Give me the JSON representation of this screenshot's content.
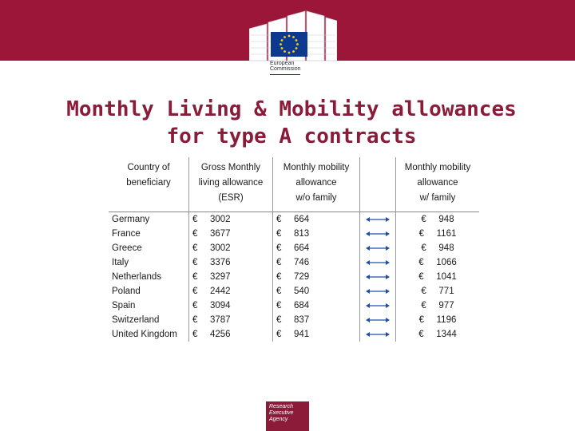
{
  "header": {
    "org_line1": "European",
    "org_line2": "Commission"
  },
  "title": {
    "line1": "Monthly Living & Mobility allowances",
    "line2": "for type A contracts"
  },
  "table": {
    "headers": {
      "country": [
        "Country of",
        "beneficiary"
      ],
      "gross": [
        "Gross Monthly",
        "living allowance",
        "(ESR)"
      ],
      "mobility": [
        "Monthly mobility",
        "allowance",
        "w/o family"
      ],
      "family": [
        "Monthly mobility",
        "allowance",
        "w/ family"
      ]
    },
    "currency": "€",
    "rows": [
      {
        "country": "Germany",
        "gross": "3002",
        "mobility": "664",
        "family": "948"
      },
      {
        "country": "France",
        "gross": "3677",
        "mobility": "813",
        "family": "1161"
      },
      {
        "country": "Greece",
        "gross": "3002",
        "mobility": "664",
        "family": "948"
      },
      {
        "country": "Italy",
        "gross": "3376",
        "mobility": "746",
        "family": "1066"
      },
      {
        "country": "Netherlands",
        "gross": "3297",
        "mobility": "729",
        "family": "1041"
      },
      {
        "country": "Poland",
        "gross": "2442",
        "mobility": "540",
        "family": "771"
      },
      {
        "country": "Spain",
        "gross": "3094",
        "mobility": "684",
        "family": "977"
      },
      {
        "country": "Switzerland",
        "gross": "3787",
        "mobility": "837",
        "family": "1196"
      },
      {
        "country": "United Kingdom",
        "gross": "4256",
        "mobility": "941",
        "family": "1344"
      }
    ]
  },
  "footer": {
    "line1": "Research",
    "line2": "Executive",
    "line3": "Agency"
  },
  "colors": {
    "brand": "#9b1638",
    "title": "#8a1c3a",
    "arrow": "#1f4fa8"
  }
}
